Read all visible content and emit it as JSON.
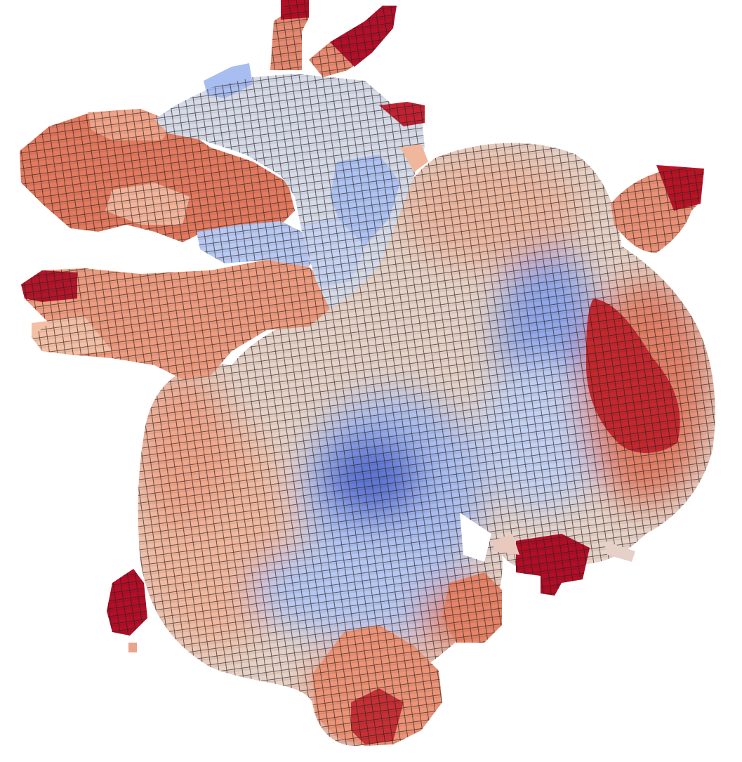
{
  "scene": {
    "subject": "voxelized-dragon",
    "background_color": "#ffffff",
    "colormap": "coolwarm",
    "palette": {
      "deep_blue": "#4a63c8",
      "blue": "#7f98e6",
      "light_blue": "#b9ccf3",
      "neutral": "#dcdde6",
      "light_salmon": "#f2c3ab",
      "salmon": "#ee9a7e",
      "coral": "#e2735a",
      "red": "#c22a2e",
      "dark_red": "#ad0a24",
      "edge": "#2b2020"
    }
  }
}
